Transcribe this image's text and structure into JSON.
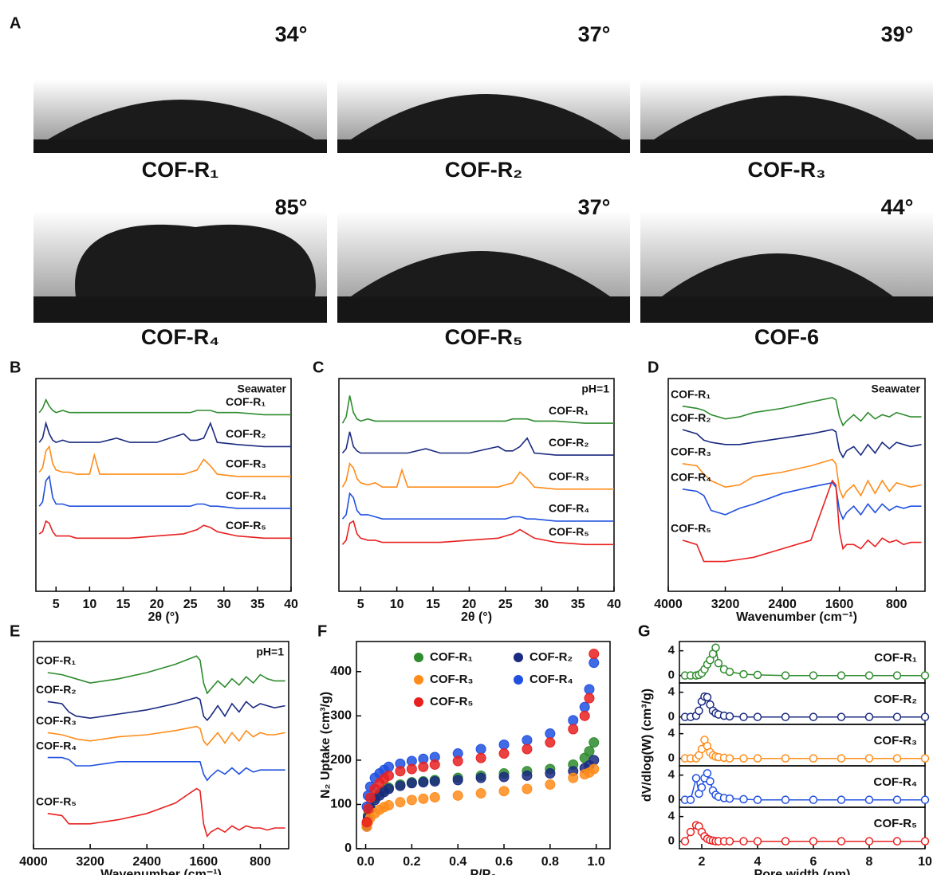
{
  "panel_a": {
    "label": "A",
    "photos": [
      {
        "angle": "34°",
        "sample": "COF-R₁"
      },
      {
        "angle": "37°",
        "sample": "COF-R₂"
      },
      {
        "angle": "39°",
        "sample": "COF-R₃"
      },
      {
        "angle": "85°",
        "sample": "COF-R₄"
      },
      {
        "angle": "37°",
        "sample": "COF-R₅"
      },
      {
        "angle": "44°",
        "sample": "COF-6"
      }
    ]
  },
  "chart_data": [
    {
      "label": "B",
      "type": "line",
      "annotation": "Seawater",
      "xlabel": "2θ (°)",
      "x": [
        2.5,
        3,
        3.5,
        4,
        4.5,
        5,
        6,
        7,
        8,
        10,
        10.7,
        11.5,
        14,
        16,
        20,
        24,
        25,
        26,
        27,
        28,
        29,
        32,
        36,
        40
      ],
      "xlim": [
        2,
        40
      ],
      "xticks": [
        5,
        10,
        15,
        20,
        25,
        30,
        35,
        40
      ],
      "ylim": [
        0,
        100
      ],
      "series": [
        {
          "name": "COF-R₁",
          "color": "#2e8b2e",
          "values": [
            84,
            86,
            90,
            87,
            85,
            84,
            85,
            84,
            84,
            84,
            84,
            84,
            84,
            84,
            84,
            84,
            84,
            85,
            85,
            85,
            84,
            84,
            83,
            83
          ]
        },
        {
          "name": "COF-R₂",
          "color": "#1a2a80",
          "values": [
            70,
            72,
            79,
            74,
            71,
            70,
            71,
            70,
            70,
            70,
            70,
            70,
            72,
            70,
            70,
            74,
            71,
            71,
            72,
            79,
            70,
            69,
            68,
            68
          ]
        },
        {
          "name": "COF-R₃",
          "color": "#ff8c1a",
          "values": [
            56,
            58,
            66,
            68,
            60,
            57,
            56,
            56,
            55,
            55,
            64,
            55,
            55,
            55,
            55,
            55,
            56,
            57,
            62,
            59,
            55,
            54,
            54,
            54
          ]
        },
        {
          "name": "COF-R₄",
          "color": "#2050e0",
          "values": [
            40,
            42,
            52,
            54,
            44,
            41,
            41,
            40,
            40,
            40,
            40,
            40,
            40,
            40,
            40,
            40,
            40,
            41,
            41,
            40,
            40,
            39,
            39,
            39
          ]
        },
        {
          "name": "COF-R₅",
          "color": "#e82020",
          "values": [
            27,
            28,
            33,
            32,
            28,
            26,
            26,
            26,
            25,
            25,
            25,
            25,
            25,
            25,
            26,
            27,
            28,
            29,
            31,
            30,
            28,
            26,
            25,
            25
          ]
        }
      ]
    },
    {
      "label": "C",
      "type": "line",
      "annotation": "pH=1",
      "xlabel": "2θ (°)",
      "x": [
        2.5,
        3,
        3.5,
        4,
        4.5,
        5,
        6,
        7,
        8,
        10,
        10.7,
        11.5,
        14,
        16,
        20,
        24,
        25,
        26,
        27,
        28,
        29,
        32,
        36,
        40
      ],
      "xlim": [
        2,
        40
      ],
      "xticks": [
        5,
        10,
        15,
        20,
        25,
        30,
        35,
        40
      ],
      "ylim": [
        0,
        100
      ],
      "series": [
        {
          "name": "COF-R₁",
          "color": "#2e8b2e",
          "values": [
            79,
            82,
            92,
            84,
            81,
            80,
            81,
            80,
            80,
            80,
            80,
            80,
            80,
            80,
            80,
            80,
            80,
            81,
            81,
            81,
            80,
            80,
            79,
            79
          ]
        },
        {
          "name": "COF-R₂",
          "color": "#1a2a80",
          "values": [
            65,
            67,
            75,
            68,
            66,
            65,
            65,
            65,
            65,
            65,
            65,
            65,
            67,
            65,
            65,
            68,
            66,
            66,
            68,
            72,
            65,
            64,
            64,
            64
          ]
        },
        {
          "name": "COF-R₃",
          "color": "#ff8c1a",
          "values": [
            49,
            52,
            60,
            58,
            53,
            51,
            50,
            51,
            49,
            49,
            57,
            49,
            49,
            49,
            49,
            49,
            50,
            51,
            56,
            53,
            49,
            48,
            48,
            48
          ]
        },
        {
          "name": "COF-R₄",
          "color": "#2050e0",
          "values": [
            34,
            36,
            46,
            44,
            38,
            36,
            36,
            35,
            34,
            34,
            34,
            34,
            34,
            34,
            34,
            34,
            34,
            35,
            35,
            34,
            34,
            33,
            33,
            33
          ]
        },
        {
          "name": "COF-R₅",
          "color": "#e82020",
          "values": [
            22,
            24,
            32,
            33,
            27,
            25,
            24,
            24,
            23,
            23,
            23,
            23,
            23,
            23,
            24,
            25,
            26,
            27,
            29,
            27,
            25,
            23,
            22,
            22
          ]
        }
      ]
    },
    {
      "label": "D",
      "type": "line",
      "annotation": "Seawater",
      "xlabel": "Wavenumber (cm⁻¹)",
      "x": [
        3800,
        3600,
        3500,
        3400,
        3200,
        3000,
        2800,
        2400,
        2000,
        1700,
        1650,
        1600,
        1550,
        1500,
        1400,
        1300,
        1200,
        1100,
        1000,
        900,
        800,
        700,
        600,
        450
      ],
      "xlim": [
        4000,
        400
      ],
      "xticks": [
        4000,
        3200,
        2400,
        1600,
        800
      ],
      "ylim": [
        0,
        100
      ],
      "series": [
        {
          "name": "COF-R₁",
          "color": "#2e8b2e",
          "values": [
            87,
            86,
            85,
            83,
            81,
            82,
            84,
            86,
            89,
            91,
            90,
            82,
            78,
            80,
            83,
            80,
            84,
            81,
            83,
            82,
            84,
            83,
            82,
            82
          ]
        },
        {
          "name": "COF-R₂",
          "color": "#1a2a80",
          "values": [
            76,
            74,
            71,
            70,
            69,
            69,
            70,
            72,
            74,
            76,
            75,
            66,
            63,
            66,
            68,
            64,
            69,
            65,
            70,
            67,
            70,
            69,
            68,
            69
          ]
        },
        {
          "name": "COF-R₃",
          "color": "#ff8c1a",
          "values": [
            60,
            59,
            55,
            52,
            49,
            50,
            54,
            56,
            59,
            62,
            60,
            48,
            44,
            47,
            50,
            45,
            52,
            46,
            52,
            47,
            51,
            50,
            49,
            50
          ]
        },
        {
          "name": "COF-R₄",
          "color": "#2050e0",
          "values": [
            48,
            47,
            45,
            38,
            36,
            39,
            41,
            46,
            49,
            51,
            49,
            38,
            34,
            37,
            40,
            36,
            41,
            37,
            41,
            38,
            40,
            39,
            40,
            40
          ]
        },
        {
          "name": "COF-R₅",
          "color": "#e82020",
          "values": [
            24,
            22,
            14,
            14,
            14,
            15,
            16,
            20,
            24,
            52,
            50,
            28,
            20,
            22,
            22,
            20,
            24,
            21,
            25,
            23,
            24,
            22,
            23,
            23
          ]
        }
      ]
    },
    {
      "label": "E",
      "type": "line",
      "annotation": "pH=1",
      "xlabel": "Wavenumber (cm⁻¹)",
      "x": [
        3800,
        3600,
        3500,
        3400,
        3200,
        3000,
        2800,
        2400,
        2000,
        1700,
        1650,
        1600,
        1550,
        1500,
        1400,
        1300,
        1200,
        1100,
        1000,
        900,
        800,
        700,
        600,
        450
      ],
      "xlim": [
        4000,
        400
      ],
      "xticks": [
        4000,
        3200,
        2400,
        1600,
        800
      ],
      "ylim": [
        0,
        100
      ],
      "series": [
        {
          "name": "COF-R₁",
          "color": "#2e8b2e",
          "values": [
            85,
            84,
            83,
            82,
            80,
            81,
            82,
            85,
            89,
            93,
            91,
            80,
            75,
            77,
            81,
            78,
            82,
            79,
            83,
            80,
            84,
            82,
            81,
            81
          ]
        },
        {
          "name": "COF-R₂",
          "color": "#1a2a80",
          "values": [
            71,
            70,
            66,
            64,
            63,
            64,
            65,
            67,
            70,
            73,
            72,
            64,
            62,
            64,
            69,
            64,
            70,
            66,
            71,
            68,
            70,
            69,
            68,
            69
          ]
        },
        {
          "name": "COF-R₃",
          "color": "#ff8c1a",
          "values": [
            56,
            55,
            54,
            53,
            52,
            53,
            54,
            55,
            57,
            59,
            58,
            52,
            50,
            52,
            56,
            51,
            56,
            52,
            57,
            54,
            56,
            55,
            55,
            56
          ]
        },
        {
          "name": "COF-R₄",
          "color": "#2050e0",
          "values": [
            44,
            44,
            43,
            40,
            40,
            41,
            42,
            42,
            42,
            42,
            42,
            36,
            33,
            35,
            38,
            36,
            39,
            36,
            39,
            37,
            38,
            38,
            38,
            38
          ]
        },
        {
          "name": "COF-R₅",
          "color": "#e82020",
          "values": [
            17,
            16,
            12,
            12,
            12,
            13,
            14,
            17,
            22,
            29,
            28,
            12,
            6,
            8,
            10,
            8,
            11,
            9,
            11,
            10,
            10,
            9,
            10,
            10
          ]
        }
      ]
    },
    {
      "label": "F",
      "type": "scatter",
      "xlabel": "P/P₀",
      "ylabel": "N₂ Uptake (cm³/g)",
      "x": [
        0.005,
        0.01,
        0.02,
        0.04,
        0.06,
        0.08,
        0.1,
        0.15,
        0.2,
        0.25,
        0.3,
        0.4,
        0.5,
        0.6,
        0.7,
        0.8,
        0.9,
        0.95,
        0.97,
        0.99
      ],
      "xlim": [
        -0.04,
        1.06
      ],
      "xticks": [
        {
          "value": 0,
          "label": "0.0"
        },
        0.2,
        0.4,
        0.6,
        0.8,
        {
          "value": 1,
          "label": "1.0"
        }
      ],
      "ylim": [
        0,
        468
      ],
      "yticks": [
        0,
        100,
        200,
        300,
        400
      ],
      "series": [
        {
          "name": "COF-R₁",
          "color": "#2e8b2e",
          "values": [
            55,
            75,
            95,
            115,
            125,
            132,
            138,
            145,
            150,
            152,
            155,
            160,
            165,
            170,
            175,
            180,
            190,
            205,
            220,
            240
          ]
        },
        {
          "name": "COF-R₂",
          "color": "#1a2a80",
          "values": [
            50,
            70,
            90,
            110,
            120,
            128,
            135,
            142,
            148,
            150,
            152,
            155,
            160,
            162,
            165,
            170,
            175,
            182,
            188,
            200
          ]
        },
        {
          "name": "COF-R₃",
          "color": "#ff8c1a",
          "values": [
            50,
            60,
            70,
            80,
            88,
            94,
            98,
            105,
            110,
            113,
            116,
            120,
            125,
            130,
            135,
            145,
            160,
            168,
            172,
            180
          ]
        },
        {
          "name": "COF-R₄",
          "color": "#2050e0",
          "values": [
            95,
            120,
            140,
            160,
            170,
            178,
            185,
            192,
            198,
            203,
            207,
            215,
            225,
            235,
            245,
            260,
            290,
            320,
            360,
            420
          ]
        },
        {
          "name": "COF-R₅",
          "color": "#e82020",
          "values": [
            60,
            90,
            115,
            135,
            148,
            158,
            165,
            175,
            180,
            185,
            190,
            198,
            205,
            215,
            225,
            240,
            270,
            300,
            340,
            440
          ]
        }
      ]
    },
    {
      "label": "G",
      "type": "line",
      "subplots": true,
      "xlabel": "Pore width (nm)",
      "ylabel": "dV/dlog(W) (cm³/g)",
      "x": [
        1.4,
        1.6,
        1.8,
        1.9,
        2.0,
        2.1,
        2.2,
        2.3,
        2.4,
        2.5,
        2.6,
        2.8,
        3.0,
        3.5,
        4,
        5,
        6,
        7,
        8,
        9,
        10
      ],
      "xlim": [
        1.2,
        10
      ],
      "xticks": [
        2,
        4,
        6,
        8,
        10
      ],
      "ylim": [
        -1.2,
        5.5
      ],
      "yticks": [
        0,
        4
      ],
      "series": [
        {
          "name": "COF-R₁",
          "color": "#2e8b2e",
          "values": [
            0,
            0,
            0,
            0.1,
            0.4,
            1,
            1.8,
            2.5,
            3.5,
            4.5,
            2,
            1,
            0.6,
            0.2,
            0.1,
            0,
            0,
            0,
            0,
            0,
            0
          ]
        },
        {
          "name": "COF-R₂",
          "color": "#1a2a80",
          "values": [
            0,
            0,
            0.2,
            1,
            2.5,
            3.3,
            3.2,
            2,
            1,
            0.6,
            0.4,
            0.2,
            0.1,
            0,
            0,
            0,
            0,
            0,
            0,
            0,
            0
          ]
        },
        {
          "name": "COF-R₃",
          "color": "#ff8c1a",
          "values": [
            0,
            0,
            0,
            0.5,
            1.5,
            3,
            2,
            1,
            0.5,
            0.3,
            0.2,
            0.1,
            0,
            0,
            0,
            0,
            0,
            0,
            0,
            0,
            0
          ]
        },
        {
          "name": "COF-R₄",
          "color": "#2050e0",
          "values": [
            0,
            0,
            3.5,
            1,
            2,
            3.5,
            4.3,
            3,
            1.5,
            0.8,
            0.5,
            0.3,
            0.2,
            0.1,
            0,
            0,
            0,
            0,
            0,
            0,
            0
          ]
        },
        {
          "name": "COF-R₅",
          "color": "#e82020",
          "values": [
            0,
            1.5,
            2.6,
            2.4,
            1.5,
            0.8,
            0.4,
            0.2,
            0.1,
            0,
            0,
            0,
            0,
            0,
            0,
            0,
            0,
            0,
            0,
            0,
            0
          ]
        }
      ]
    }
  ]
}
